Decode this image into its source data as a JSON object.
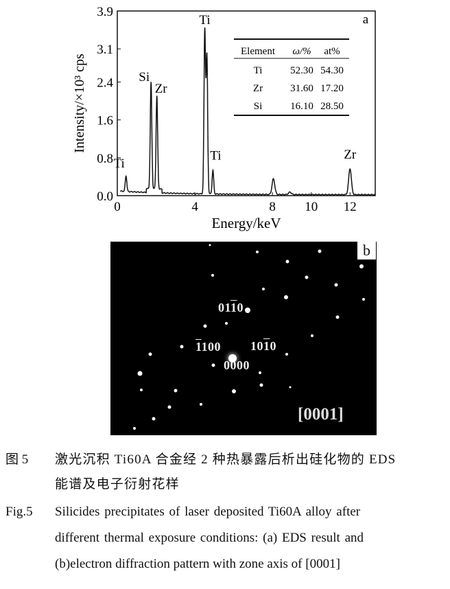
{
  "chart_data": {
    "type": "line",
    "panel_label": "a",
    "xlabel": "Energy/keV",
    "ylabel": "Intensity/×10³ cps",
    "xlim": [
      0,
      13.3
    ],
    "ylim": [
      0,
      3.9
    ],
    "xticks": [
      "0",
      "4",
      "8",
      "10",
      "12"
    ],
    "xtick_values": [
      0,
      4,
      8,
      10,
      12
    ],
    "yticks": [
      "0.0",
      "0.8",
      "1.6",
      "2.4",
      "3.1",
      "3.9"
    ],
    "ytick_values": [
      0,
      0.8,
      1.6,
      2.4,
      3.1,
      3.9
    ],
    "grid": false,
    "peaks": [
      {
        "x": 0.45,
        "y": 0.33,
        "label": "Ti"
      },
      {
        "x": 1.74,
        "y": 2.25,
        "label": "Si"
      },
      {
        "x": 2.04,
        "y": 1.97,
        "label": "Zr"
      },
      {
        "x": 4.51,
        "y": 3.45,
        "label": "Ti"
      },
      {
        "x": 4.62,
        "y": 2.9,
        "label": ""
      },
      {
        "x": 4.93,
        "y": 0.5,
        "label": "Ti"
      },
      {
        "x": 8.05,
        "y": 0.33,
        "label": ""
      },
      {
        "x": 8.9,
        "y": 0.05,
        "label": ""
      },
      {
        "x": 12.0,
        "y": 0.55,
        "label": "Zr"
      }
    ],
    "table": {
      "headers": [
        "Element",
        "ω/%",
        "at%"
      ],
      "rows": [
        [
          "Ti",
          "52.30",
          "54.30"
        ],
        [
          "Zr",
          "31.60",
          "17.20"
        ],
        [
          "Si",
          "16.10",
          "28.50"
        ]
      ]
    }
  },
  "panel_b": {
    "label": "b",
    "indices": {
      "i0110": [
        "01",
        "1",
        "0"
      ],
      "i1100": [
        "1",
        "100"
      ],
      "i1010": [
        "10",
        "1",
        "0"
      ],
      "i0000": "0000"
    },
    "zone_axis": "[0001]"
  },
  "caption": {
    "cn_label": "图 5",
    "cn_line1": "激光沉积 Ti60A 合金经 2 种热暴露后析出硅化物的 EDS",
    "cn_line2": "能谱及电子衍射花样",
    "en_label": "Fig.5",
    "en_line1": "Silicides precipitates of laser deposited Ti60A alloy after",
    "en_line2": "different thermal exposure conditions: (a) EDS result and",
    "en_line3": "(b)electron diffraction pattern with zone axis of [0001]"
  }
}
